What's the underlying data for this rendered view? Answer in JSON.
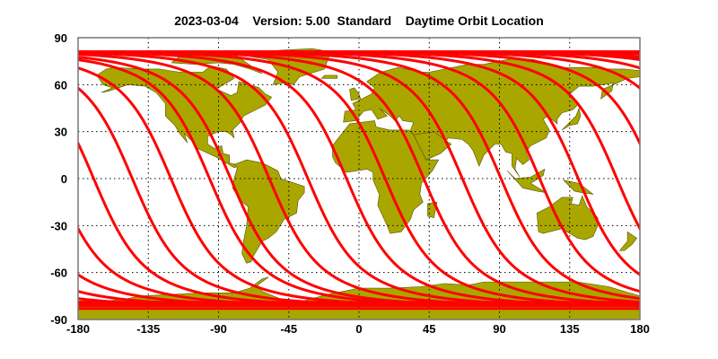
{
  "title": "2023-03-04    Version: 5.00  Standard    Daytime Orbit Location",
  "chart_data": {
    "type": "map",
    "projection": "equirectangular",
    "title": "2023-03-04    Version: 5.00  Standard    Daytime Orbit Location",
    "xlim": [
      -180,
      180
    ],
    "ylim": [
      -90,
      90
    ],
    "x_ticks": [
      "-180",
      "-135",
      "-90",
      "-45",
      "0",
      "45",
      "90",
      "135",
      "180"
    ],
    "y_ticks": [
      "90",
      "60",
      "30",
      "0",
      "-30",
      "-60",
      "-90"
    ],
    "grid": true,
    "track_max_latitude": 81,
    "track_equator_crossings_lon": [
      -57.5,
      -32.75,
      -8,
      16.75,
      41.5,
      66.25,
      91,
      115.75,
      140.5,
      165.25,
      -170,
      -145.25,
      -120.5,
      -95.75,
      -82.25
    ],
    "colors": {
      "land": "#a9a600",
      "coast": "#555500",
      "track": "#ff0000",
      "grid": "#000000"
    }
  }
}
